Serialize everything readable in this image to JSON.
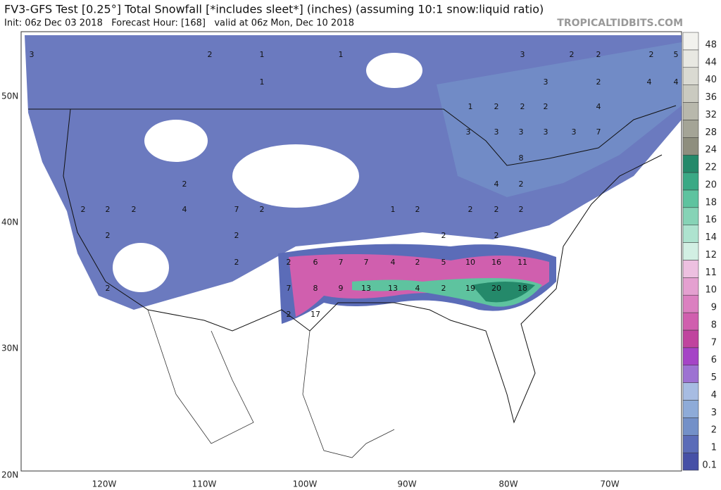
{
  "header": {
    "title": "FV3-GFS Test [0.25°] Total Snowfall [*includes sleet*] (inches) (assuming 10:1 snow:liquid ratio)",
    "subtitle": "Init: 06z Dec 03 2018   Forecast Hour: [168]   valid at 06z Mon, Dec 10 2018",
    "site": "TROPICALTIDBITS.COM"
  },
  "map": {
    "lat_labels": [
      "50N",
      "40N",
      "30N",
      "20N"
    ],
    "lon_labels": [
      "120W",
      "110W",
      "100W",
      "90W",
      "80W",
      "70W"
    ],
    "labels": [
      "3",
      "2",
      "1",
      "1",
      "1",
      "2",
      "5",
      "2",
      "2",
      "3",
      "3",
      "2",
      "4",
      "4",
      "1",
      "2",
      "2",
      "2",
      "4",
      "3",
      "3",
      "3",
      "3",
      "3",
      "7",
      "8",
      "4",
      "2",
      "2",
      "2",
      "2",
      "2",
      "4",
      "7",
      "2",
      "1",
      "2",
      "2",
      "2",
      "2",
      "2",
      "2",
      "2",
      "2",
      "2",
      "2",
      "6",
      "7",
      "7",
      "4",
      "2",
      "5",
      "10",
      "16",
      "11",
      "2",
      "7",
      "8",
      "9",
      "13",
      "13",
      "4",
      "2",
      "19",
      "20",
      "18",
      "2",
      "17"
    ]
  },
  "colorbar": {
    "levels": [
      0.1,
      1,
      2,
      3,
      4,
      5,
      6,
      7,
      8,
      9,
      10,
      11,
      12,
      14,
      16,
      18,
      20,
      22,
      24,
      28,
      32,
      36,
      40,
      44,
      48
    ],
    "colors": [
      "#4650a6",
      "#5b6cb8",
      "#7390c8",
      "#8eabd8",
      "#a7bce2",
      "#9d72d2",
      "#a544c6",
      "#c0449e",
      "#d05fae",
      "#db80c0",
      "#e4a0d0",
      "#edc0e0",
      "#d2efe3",
      "#aee3cf",
      "#86d3b6",
      "#5ec39f",
      "#3aa985",
      "#24896a",
      "#8e8e7e",
      "#a4a496",
      "#b8b8ac",
      "#cacac0",
      "#dadad2",
      "#e8e8e2",
      "#f2f2ee"
    ]
  }
}
